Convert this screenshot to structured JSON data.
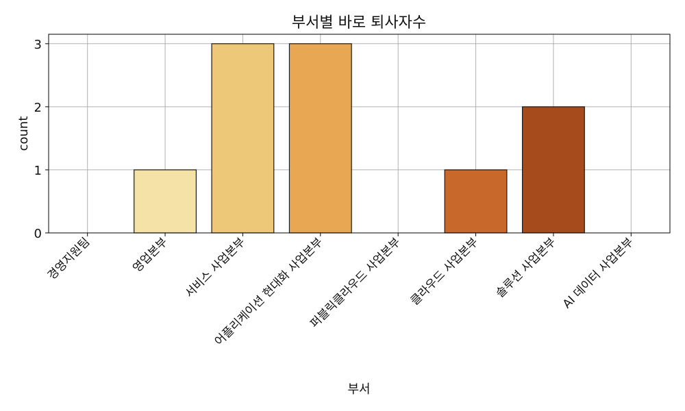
{
  "chart_data": {
    "type": "bar",
    "title": "부서별 바로 퇴사자수",
    "xlabel": "부서",
    "ylabel": "count",
    "categories": [
      "경영지원팀",
      "영업본부",
      "서비스 사업본부",
      "어플리케이션 현대화 사업본부",
      "퍼블릭클라우드 사업본부",
      "클라우드 사업본부",
      "솔루션 사업본부",
      "AI 데이터 사업본부"
    ],
    "values": [
      0,
      1,
      3,
      3,
      0,
      1,
      2,
      0
    ],
    "colors": [
      "#f6e7b0",
      "#f4e2a6",
      "#ecc878",
      "#e7a753",
      "#dc8a3e",
      "#c8692b",
      "#a64b1b",
      "#8c3a14"
    ],
    "ylim": [
      0,
      3.15
    ],
    "yticks": [
      0,
      1,
      2,
      3
    ],
    "grid": true
  }
}
